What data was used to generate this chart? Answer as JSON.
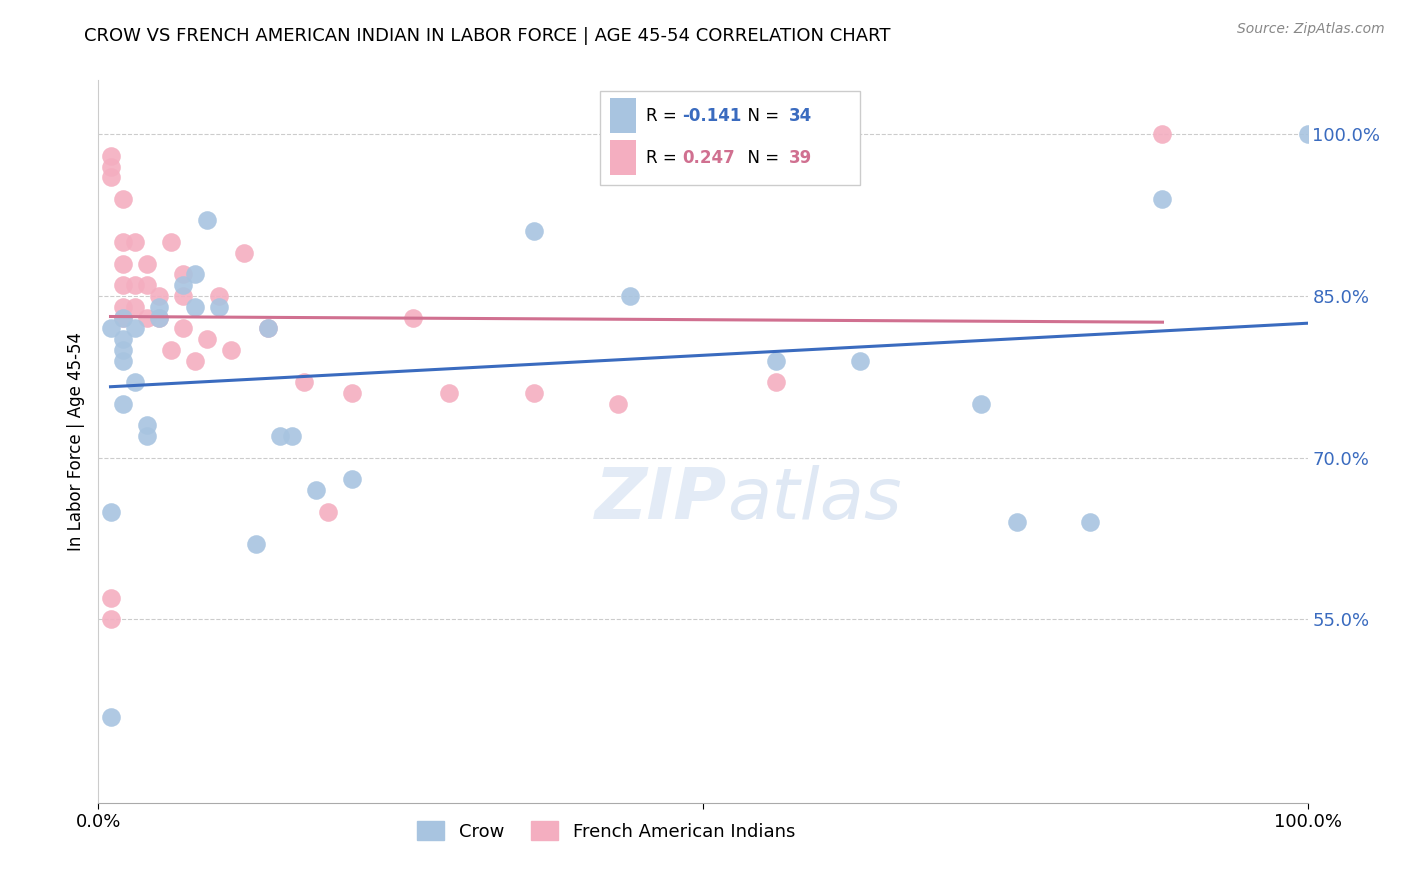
{
  "title": "CROW VS FRENCH AMERICAN INDIAN IN LABOR FORCE | AGE 45-54 CORRELATION CHART",
  "source": "Source: ZipAtlas.com",
  "ylabel": "In Labor Force | Age 45-54",
  "xlim": [
    0.0,
    1.0
  ],
  "ylim": [
    0.38,
    1.05
  ],
  "yticks": [
    0.55,
    0.7,
    0.85,
    1.0
  ],
  "ytick_labels": [
    "55.0%",
    "70.0%",
    "85.0%",
    "100.0%"
  ],
  "legend_labels": [
    "Crow",
    "French American Indians"
  ],
  "R_crow": -0.141,
  "N_crow": 34,
  "R_french": 0.247,
  "N_french": 39,
  "crow_color": "#a8c4e0",
  "french_color": "#f4aec0",
  "crow_line_color": "#3a6bbf",
  "french_line_color": "#d07090",
  "background_color": "#ffffff",
  "crow_x": [
    0.01,
    0.01,
    0.01,
    0.02,
    0.02,
    0.02,
    0.02,
    0.02,
    0.03,
    0.03,
    0.04,
    0.04,
    0.05,
    0.05,
    0.07,
    0.08,
    0.08,
    0.09,
    0.1,
    0.13,
    0.14,
    0.15,
    0.16,
    0.18,
    0.21,
    0.36,
    0.44,
    0.56,
    0.63,
    0.73,
    0.76,
    0.82,
    0.88,
    1.0
  ],
  "crow_y": [
    0.46,
    0.65,
    0.82,
    0.83,
    0.81,
    0.8,
    0.79,
    0.75,
    0.82,
    0.77,
    0.73,
    0.72,
    0.84,
    0.83,
    0.86,
    0.84,
    0.87,
    0.92,
    0.84,
    0.62,
    0.82,
    0.72,
    0.72,
    0.67,
    0.68,
    0.91,
    0.85,
    0.79,
    0.79,
    0.75,
    0.64,
    0.64,
    0.94,
    1.0
  ],
  "french_x": [
    0.01,
    0.01,
    0.01,
    0.01,
    0.01,
    0.02,
    0.02,
    0.02,
    0.02,
    0.02,
    0.02,
    0.03,
    0.03,
    0.03,
    0.04,
    0.04,
    0.04,
    0.05,
    0.05,
    0.06,
    0.06,
    0.07,
    0.07,
    0.07,
    0.08,
    0.09,
    0.1,
    0.11,
    0.12,
    0.14,
    0.17,
    0.19,
    0.21,
    0.26,
    0.29,
    0.36,
    0.43,
    0.56,
    0.88
  ],
  "french_y": [
    0.57,
    0.55,
    0.98,
    0.97,
    0.96,
    0.94,
    0.9,
    0.88,
    0.84,
    0.86,
    0.83,
    0.9,
    0.86,
    0.84,
    0.88,
    0.86,
    0.83,
    0.85,
    0.83,
    0.9,
    0.8,
    0.87,
    0.85,
    0.82,
    0.79,
    0.81,
    0.85,
    0.8,
    0.89,
    0.82,
    0.77,
    0.65,
    0.76,
    0.83,
    0.76,
    0.76,
    0.75,
    0.77,
    1.0
  ]
}
